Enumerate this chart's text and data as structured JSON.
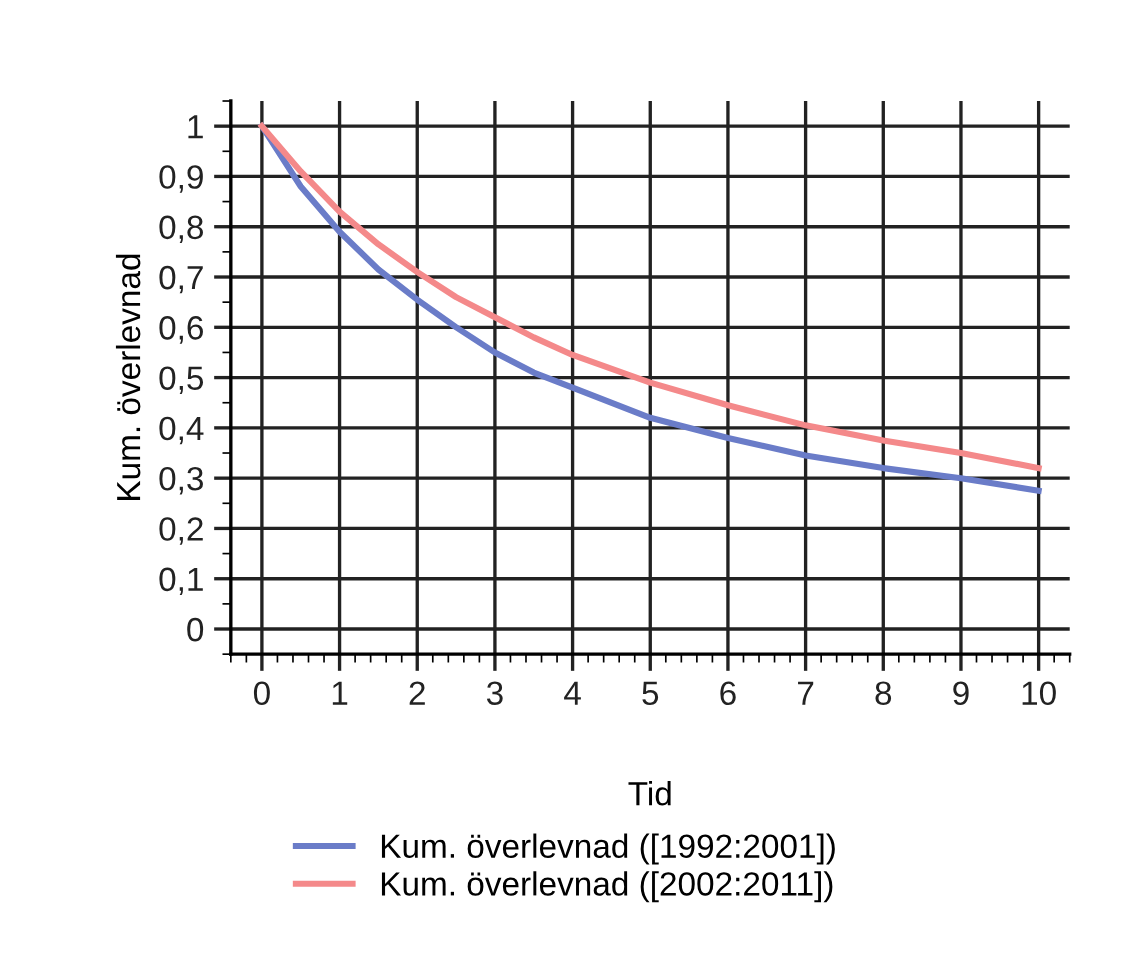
{
  "chart_data": {
    "type": "line",
    "xlabel": "Tid",
    "ylabel": "Kum. överlevnad",
    "x": [
      0,
      0.5,
      1,
      1.5,
      2,
      2.5,
      3,
      3.5,
      4,
      5,
      6,
      7,
      8,
      9,
      10
    ],
    "series": [
      {
        "name": "Kum. överlevnad ([1992:2001])",
        "color": "#6a7cc8",
        "values": [
          1,
          0.88,
          0.79,
          0.715,
          0.655,
          0.6,
          0.55,
          0.51,
          0.48,
          0.42,
          0.38,
          0.345,
          0.32,
          0.3,
          0.275
        ]
      },
      {
        "name": "Kum. överlevnad ([2002:2011])",
        "color": "#f4898a",
        "values": [
          1,
          0.91,
          0.83,
          0.765,
          0.71,
          0.66,
          0.62,
          0.58,
          0.545,
          0.49,
          0.445,
          0.405,
          0.375,
          0.35,
          0.32
        ]
      }
    ],
    "xlim": [
      -0.4,
      10.4
    ],
    "ylim": [
      -0.05,
      1.05
    ],
    "xticks": [
      0,
      1,
      2,
      3,
      4,
      5,
      6,
      7,
      8,
      9,
      10
    ],
    "yticks": [
      {
        "value": 0,
        "label": "0"
      },
      {
        "value": 0.1,
        "label": "0,1"
      },
      {
        "value": 0.2,
        "label": "0,2"
      },
      {
        "value": 0.3,
        "label": "0,3"
      },
      {
        "value": 0.4,
        "label": "0,4"
      },
      {
        "value": 0.5,
        "label": "0,5"
      },
      {
        "value": 0.6,
        "label": "0,6"
      },
      {
        "value": 0.7,
        "label": "0,7"
      },
      {
        "value": 0.8,
        "label": "0,8"
      },
      {
        "value": 0.9,
        "label": "0,9"
      },
      {
        "value": 1,
        "label": "1"
      }
    ],
    "grid": true,
    "legend": "bottom",
    "marker": "none",
    "line_style": "solid"
  }
}
